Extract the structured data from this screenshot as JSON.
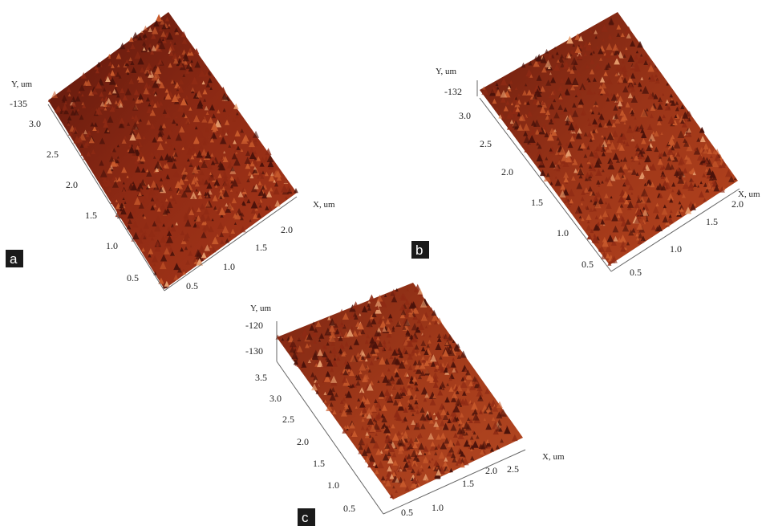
{
  "panels": [
    {
      "id": "a",
      "badge": "a",
      "y_axis_label": "Y, um",
      "x_axis_label": "X, um",
      "z_tick": "-135",
      "y_ticks": [
        "3.0",
        "2.5",
        "2.0",
        "1.5",
        "1.0",
        "0.5"
      ],
      "x_ticks": [
        "0.5",
        "1.0",
        "1.5",
        "2.0"
      ]
    },
    {
      "id": "b",
      "badge": "b",
      "y_axis_label": "Y, um",
      "x_axis_label": "X, um",
      "z_tick": "-132",
      "y_ticks": [
        "3.0",
        "2.5",
        "2.0",
        "1.5",
        "1.0",
        "0.5"
      ],
      "x_ticks": [
        "0.5",
        "1.0",
        "1.5",
        "2.0"
      ]
    },
    {
      "id": "c",
      "badge": "c",
      "y_axis_label": "Y, um",
      "x_axis_label": "X, um",
      "z_ticks": [
        "-120",
        "-130"
      ],
      "y_ticks": [
        "3.5",
        "3.0",
        "2.5",
        "2.0",
        "1.5",
        "1.0",
        "0.5"
      ],
      "x_ticks": [
        "0.5",
        "1.0",
        "1.5",
        "2.0",
        "2.5"
      ]
    }
  ],
  "colors": {
    "surface_dark": "#4a120a",
    "surface_mid": "#8e2a14",
    "surface_light": "#c85a2c",
    "peak_highlight": "#e8a070"
  }
}
